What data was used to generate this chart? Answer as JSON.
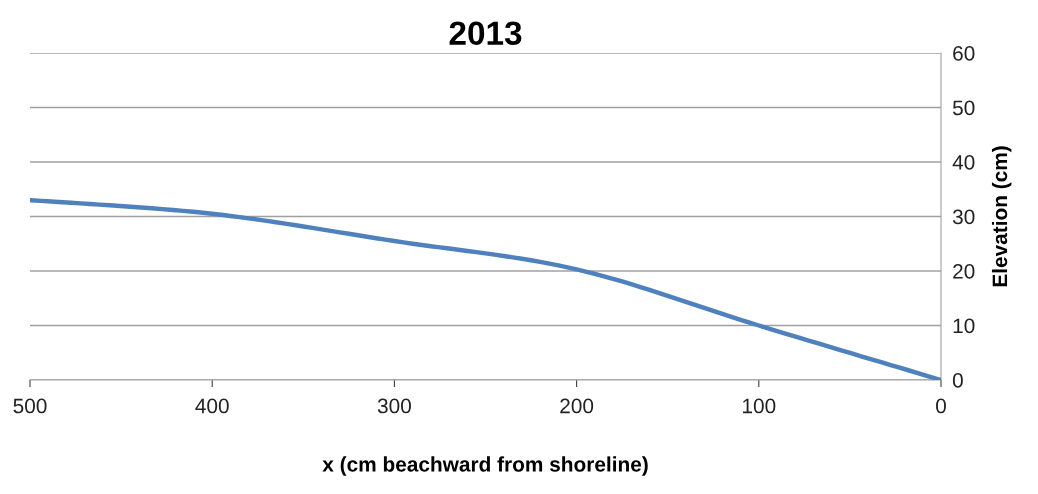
{
  "chart_data": {
    "type": "line",
    "title": "2013",
    "xlabel": "x (cm beachward from shoreline)",
    "ylabel": "Elevation (cm)",
    "x": [
      500,
      400,
      300,
      200,
      100,
      0
    ],
    "series": [
      {
        "color": "#4f81bd",
        "values": [
          33,
          30.5,
          25.5,
          20.3,
          10,
          0
        ]
      }
    ],
    "xlim": [
      500,
      0
    ],
    "xticks": [
      500,
      400,
      300,
      200,
      100,
      0
    ],
    "ylim": [
      0,
      60
    ],
    "yticks": [
      0,
      10,
      20,
      30,
      40,
      50,
      60
    ],
    "grid": "y",
    "marker": "none",
    "line_style": "solid"
  }
}
